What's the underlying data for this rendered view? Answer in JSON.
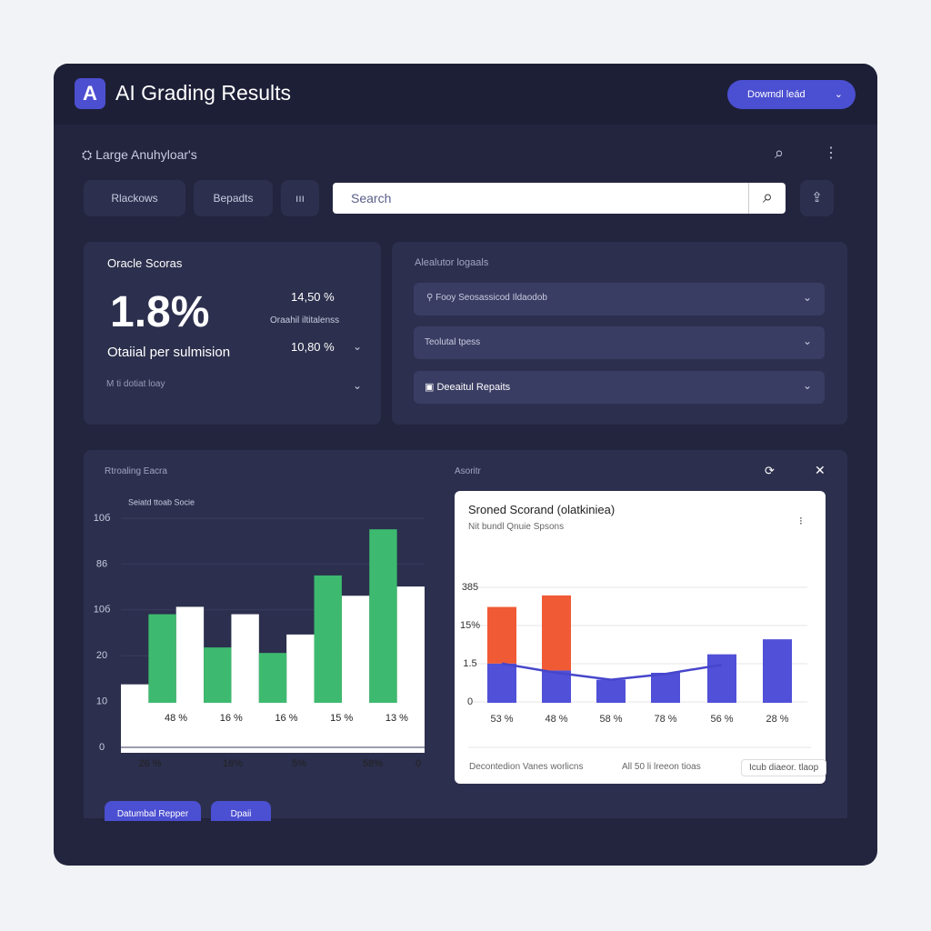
{
  "header": {
    "logo": "A",
    "title": "AI Grading Results",
    "button": "Dowmdl leád"
  },
  "toolbar": {
    "label": "Large Anuhyloar's",
    "tabs": [
      "Rlackows",
      "Bepadts",
      "ııı"
    ],
    "search": "Search"
  },
  "score_card": {
    "title": "Oracle Scoras",
    "value": "1.8%",
    "caption": "Otaiial per sulmision",
    "stat1": "14,50 %",
    "stat1_label": "Oraahil iltitalenss",
    "stat2": "10,80 %",
    "footer": "M ti dotiat loay"
  },
  "panel": {
    "title": "Alealutor logaals",
    "items": [
      "Fooy Seosassicod Ildaodob",
      "Teolutal tpess",
      "Deeaitul Repaits"
    ]
  },
  "section": {
    "left_title": "Rtroaling Eacra",
    "right_title": "Asoritr"
  },
  "chart_data": [
    {
      "type": "bar",
      "title": "Seiatd ttoab Socie",
      "axis_labels": [
        "10б",
        "86",
        "10б",
        "20",
        "10",
        "0"
      ],
      "categories": [
        null,
        "48 %",
        "16 %",
        "16 %",
        "15 %",
        "13 %"
      ],
      "secondary_labels": [
        "26 %",
        "16%",
        "5%",
        "58%",
        "0"
      ],
      "ylim": [
        0,
        100
      ],
      "series": [
        {
          "color": "#ffffff",
          "values": [
            10,
            52,
            48,
            37,
            58,
            63
          ]
        },
        {
          "color": "#3dba6f",
          "values": [
            null,
            48,
            30,
            27,
            69,
            94
          ]
        }
      ]
    },
    {
      "type": "bar",
      "title": "Sroned Scorand (olatkiniea)",
      "subtitle": "Nit bundl Qnuie Spsons",
      "axis_labels": [
        "385",
        "15%",
        "1.5",
        "0"
      ],
      "categories": [
        "53 %",
        "48 %",
        "58 %",
        "78 %",
        "56 %",
        "28 %"
      ],
      "ylim": [
        0,
        100
      ],
      "series": [
        {
          "color": "#5050d8",
          "values": [
            34,
            28,
            20,
            26,
            42,
            55
          ]
        },
        {
          "color": "#f05a35",
          "values": [
            49,
            65,
            null,
            null,
            null,
            null
          ]
        },
        {
          "color": "#4646cc",
          "line": true,
          "values": [
            34,
            26,
            20,
            25,
            33,
            null
          ]
        }
      ],
      "footer": [
        "Decontedion Vanes worlicns",
        "All 50 li lreeon tioas"
      ],
      "footer_button": "Icub diaeor. tlaop"
    }
  ],
  "actions": [
    "Datumbal Repper",
    "Dpaii"
  ]
}
